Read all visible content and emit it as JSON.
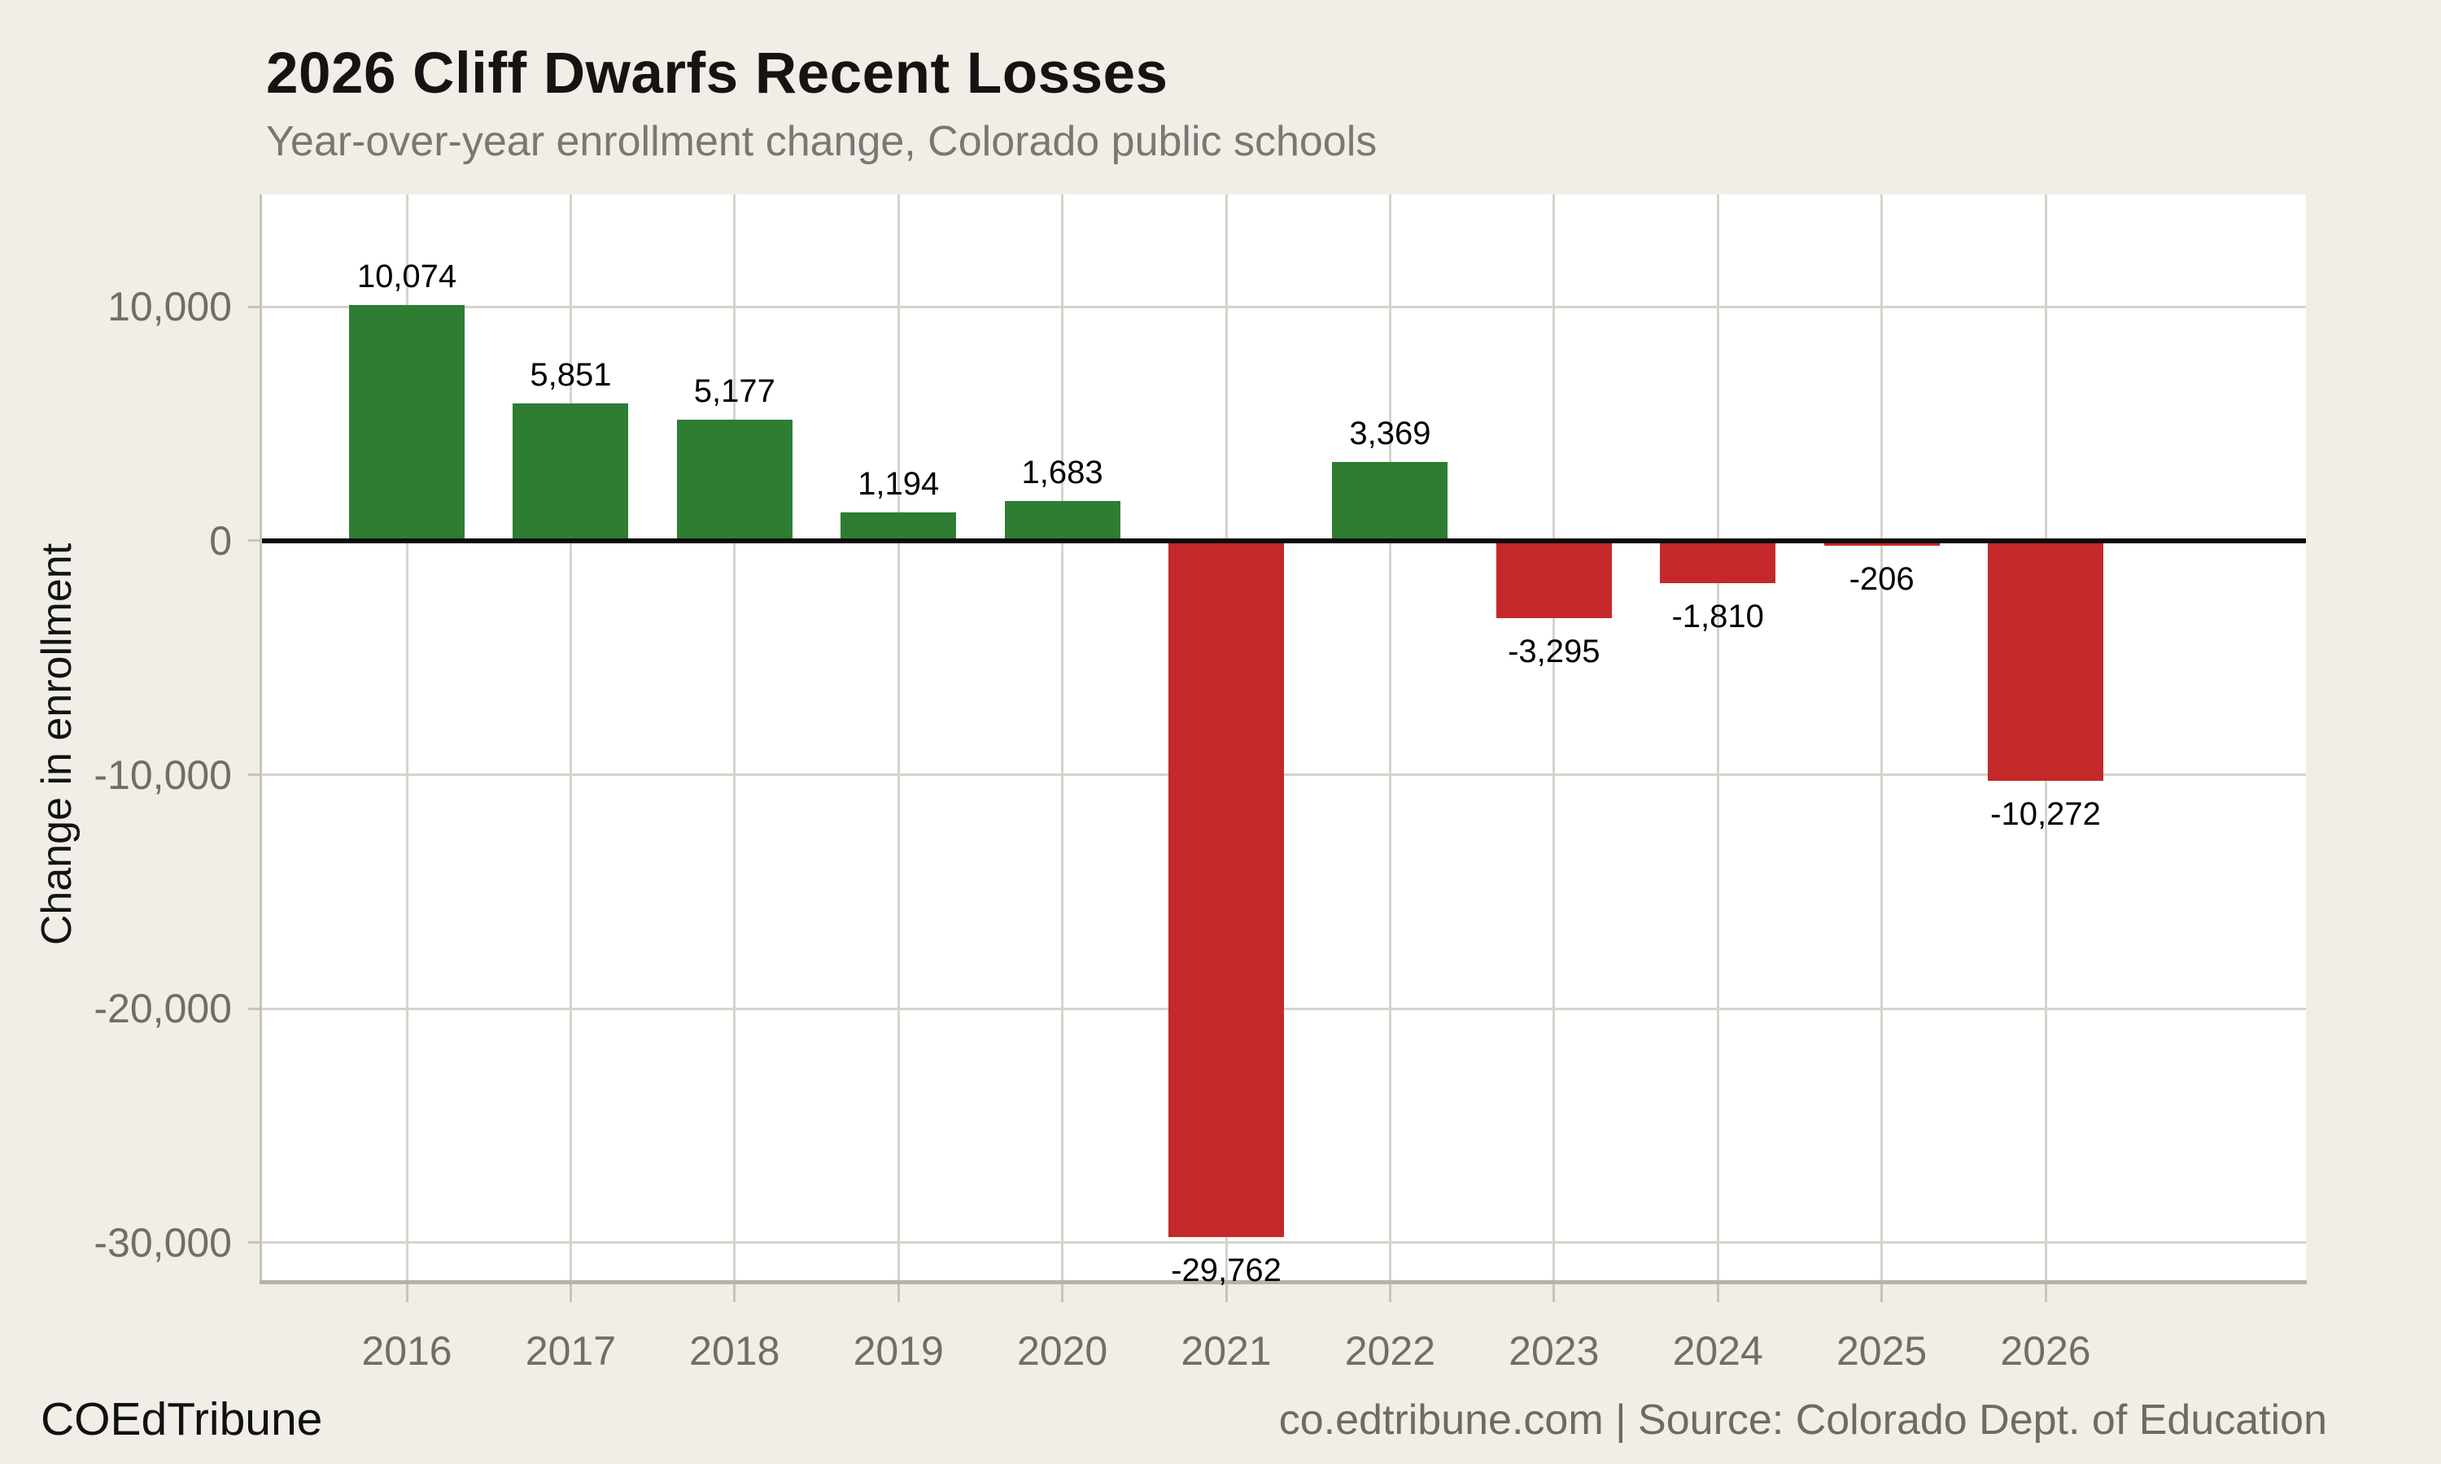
{
  "header": {
    "title": "2026 Cliff Dwarfs Recent Losses",
    "subtitle": "Year-over-year enrollment change, Colorado public schools"
  },
  "chart_data": {
    "type": "bar",
    "title": "2026 Cliff Dwarfs Recent Losses",
    "subtitle": "Year-over-year enrollment change, Colorado public schools",
    "categories": [
      "2016",
      "2017",
      "2018",
      "2019",
      "2020",
      "2021",
      "2022",
      "2023",
      "2024",
      "2025",
      "2026"
    ],
    "values": [
      10074,
      5851,
      5177,
      1194,
      1683,
      -29762,
      3369,
      -3295,
      -1810,
      -206,
      -10272
    ],
    "value_labels": [
      "10,074",
      "5,851",
      "5,177",
      "1,194",
      "1,683",
      "-29,762",
      "3,369",
      "-3,295",
      "-1,810",
      "-206",
      "-10,272"
    ],
    "xlabel": "",
    "ylabel": "Change in enrollment",
    "ylim": [
      -31600,
      14800
    ],
    "y_ticks": [
      {
        "value": 10000,
        "label": "10,000"
      },
      {
        "value": 0,
        "label": "0"
      },
      {
        "value": -10000,
        "label": "-10,000"
      },
      {
        "value": -20000,
        "label": "-20,000"
      },
      {
        "value": -30000,
        "label": "-30,000"
      }
    ],
    "grid": true,
    "legend": "none",
    "colors": {
      "positive": "#2e7d33",
      "negative": "#c5282a",
      "background": "#f1eee8",
      "plot_background": "#ffffff",
      "gridline": "#d8d3cb",
      "zero_line": "#0b0b0b",
      "tick_text": "#716d67"
    }
  },
  "footer": {
    "brand": "COEdTribune",
    "credit": "co.edtribune.com | Source: Colorado Dept. of Education"
  }
}
